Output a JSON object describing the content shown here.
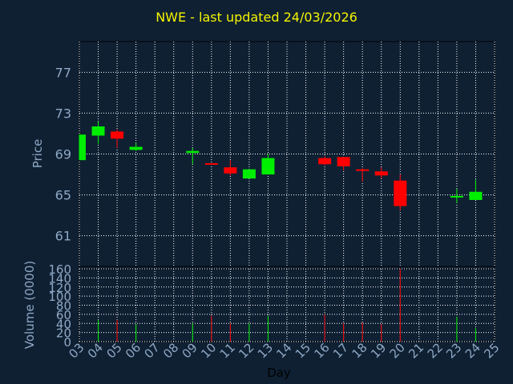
{
  "chart_data": [
    {
      "type": "candlestick",
      "title": "NWE - last updated 24/03/2026",
      "ylabel": "Price",
      "ylim": [
        58,
        80
      ],
      "yticks": [
        61,
        65,
        69,
        73,
        77
      ],
      "grid": true,
      "colors": {
        "up": "#00ee00",
        "down": "#ff0000",
        "background": "#0f2033",
        "grid": "#ffffff",
        "axis_text": "#8ea8c4",
        "title": "#f5f500"
      },
      "candles": [
        {
          "day": "03",
          "open": 68.4,
          "close": 70.9,
          "high": 70.9,
          "low": 68.4
        },
        {
          "day": "04",
          "open": 70.8,
          "close": 71.7,
          "high": 72.2,
          "low": 70.0
        },
        {
          "day": "05",
          "open": 71.2,
          "close": 70.5,
          "high": 71.4,
          "low": 69.6
        },
        {
          "day": "06",
          "open": 69.4,
          "close": 69.7,
          "high": 70.1,
          "low": 69.3
        },
        {
          "day": "09",
          "open": 69.1,
          "close": 69.3,
          "high": 69.6,
          "low": 68.0
        },
        {
          "day": "10",
          "open": 68.1,
          "close": 68.0,
          "high": 68.1,
          "low": 68.0
        },
        {
          "day": "11",
          "open": 67.7,
          "close": 67.1,
          "high": 68.4,
          "low": 66.9
        },
        {
          "day": "12",
          "open": 66.6,
          "close": 67.5,
          "high": 67.5,
          "low": 66.6
        },
        {
          "day": "13",
          "open": 67.0,
          "close": 68.6,
          "high": 69.0,
          "low": 67.0
        },
        {
          "day": "16",
          "open": 68.6,
          "close": 68.0,
          "high": 68.8,
          "low": 67.9
        },
        {
          "day": "17",
          "open": 68.7,
          "close": 67.8,
          "high": 68.7,
          "low": 67.4
        },
        {
          "day": "18",
          "open": 67.5,
          "close": 67.4,
          "high": 67.6,
          "low": 66.3
        },
        {
          "day": "19",
          "open": 67.3,
          "close": 66.9,
          "high": 67.7,
          "low": 66.6
        },
        {
          "day": "20",
          "open": 66.4,
          "close": 63.9,
          "high": 67.0,
          "low": 63.5
        },
        {
          "day": "23",
          "open": 64.8,
          "close": 64.9,
          "high": 65.6,
          "low": 64.2
        },
        {
          "day": "24",
          "open": 64.5,
          "close": 65.3,
          "high": 66.5,
          "low": 64.5
        }
      ]
    },
    {
      "type": "bar",
      "ylabel": "Volume (0000)",
      "xlabel": "Day",
      "ylim": [
        0,
        160
      ],
      "yticks": [
        0,
        20,
        40,
        60,
        80,
        100,
        120,
        140,
        160
      ],
      "categories": [
        "03",
        "04",
        "05",
        "06",
        "07",
        "08",
        "09",
        "10",
        "11",
        "12",
        "13",
        "14",
        "15",
        "16",
        "17",
        "18",
        "19",
        "20",
        "21",
        "22",
        "23",
        "24",
        "25"
      ],
      "values": [
        0,
        48,
        48,
        38,
        0,
        0,
        40,
        57,
        40,
        40,
        57,
        0,
        0,
        60,
        40,
        42,
        38,
        160,
        0,
        0,
        55,
        30,
        0
      ],
      "directions": [
        "",
        "up",
        "down",
        "up",
        "",
        "",
        "up",
        "down",
        "down",
        "up",
        "up",
        "",
        "",
        "down",
        "down",
        "down",
        "down",
        "down",
        "",
        "",
        "up",
        "up",
        ""
      ]
    }
  ]
}
